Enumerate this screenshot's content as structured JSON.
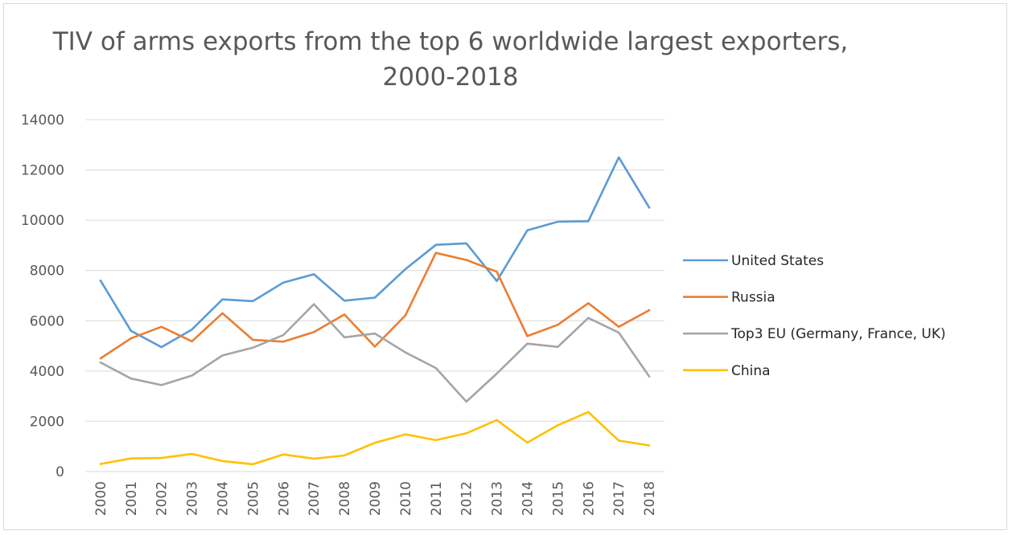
{
  "chart_data": {
    "type": "line",
    "title": "TIV of arms exports from the top 6 worldwide largest exporters, 2000-2018",
    "xlabel": "",
    "ylabel": "",
    "categories": [
      "2000",
      "2001",
      "2002",
      "2003",
      "2004",
      "2005",
      "2006",
      "2007",
      "2008",
      "2009",
      "2010",
      "2011",
      "2012",
      "2013",
      "2014",
      "2015",
      "2016",
      "2017",
      "2018"
    ],
    "ylim": [
      0,
      14000
    ],
    "yticks": [
      0,
      2000,
      4000,
      6000,
      8000,
      10000,
      12000,
      14000
    ],
    "grid": true,
    "legend_position": "right",
    "series": [
      {
        "name": "United States",
        "color": "#5B9BD5",
        "values": [
          7600,
          5600,
          4950,
          5650,
          6850,
          6780,
          7520,
          7850,
          6800,
          6920,
          8050,
          9020,
          9080,
          7580,
          9600,
          9940,
          9960,
          12500,
          10500
        ]
      },
      {
        "name": "Russia",
        "color": "#ED7D31",
        "values": [
          4500,
          5300,
          5760,
          5180,
          6300,
          5240,
          5170,
          5550,
          6250,
          4970,
          6210,
          8700,
          8420,
          7950,
          5390,
          5840,
          6700,
          5760,
          6420
        ]
      },
      {
        "name": "Top3 EU (Germany, France, UK)",
        "color": "#A5A5A5",
        "values": [
          4340,
          3700,
          3440,
          3820,
          4620,
          4930,
          5430,
          6660,
          5340,
          5490,
          4740,
          4120,
          2780,
          3900,
          5090,
          4960,
          6110,
          5530,
          3780
        ]
      },
      {
        "name": "China",
        "color": "#FFC000",
        "values": [
          300,
          520,
          540,
          700,
          420,
          290,
          680,
          510,
          640,
          1140,
          1480,
          1250,
          1520,
          2050,
          1150,
          1840,
          2370,
          1230,
          1040
        ]
      }
    ]
  }
}
